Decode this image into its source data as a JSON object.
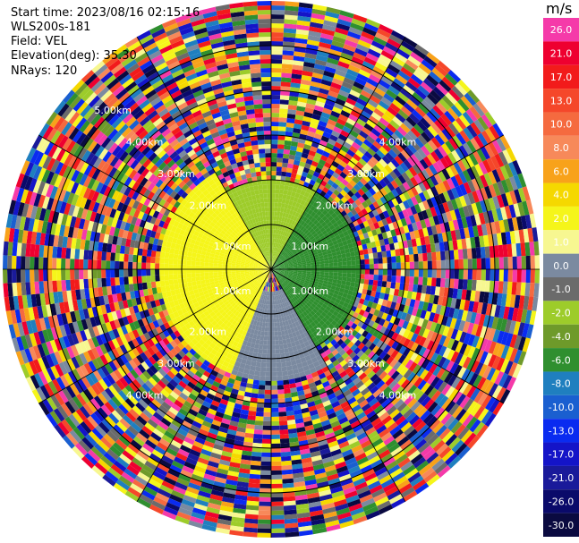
{
  "header": {
    "start_time": "Start time: 2023/08/16 02:15:16",
    "instrument": "WLS200s-181",
    "field": "Field: VEL",
    "elevation": "Elevation(deg): 35.30",
    "nrays": "NRays: 120"
  },
  "colorbar": {
    "unit": "m/s",
    "levels": [
      {
        "label": "26.0",
        "color": "#f53aa9"
      },
      {
        "label": "21.0",
        "color": "#ee0030"
      },
      {
        "label": "17.0",
        "color": "#f21b1b"
      },
      {
        "label": "13.0",
        "color": "#f5472a"
      },
      {
        "label": "10.0",
        "color": "#f56a3f"
      },
      {
        "label": "8.0",
        "color": "#f7895a"
      },
      {
        "label": "6.0",
        "color": "#f8a21a"
      },
      {
        "label": "4.0",
        "color": "#f5d800"
      },
      {
        "label": "2.0",
        "color": "#f5f51a"
      },
      {
        "label": "1.0",
        "color": "#f7f791"
      },
      {
        "label": "0.0",
        "color": "#7b8aa0"
      },
      {
        "label": "-1.0",
        "color": "#6b6b6b"
      },
      {
        "label": "-2.0",
        "color": "#9dcc2a"
      },
      {
        "label": "-4.0",
        "color": "#6e9a2a"
      },
      {
        "label": "-6.0",
        "color": "#2f8f2f"
      },
      {
        "label": "-8.0",
        "color": "#1f7fbf"
      },
      {
        "label": "-10.0",
        "color": "#1a5fd0"
      },
      {
        "label": "-13.0",
        "color": "#0a2bf0"
      },
      {
        "label": "-17.0",
        "color": "#1414c8"
      },
      {
        "label": "-21.0",
        "color": "#1a1a9a"
      },
      {
        "label": "-26.0",
        "color": "#0a0a6a"
      },
      {
        "label": "-30.0",
        "color": "#0a0a40"
      }
    ]
  },
  "chart_data": {
    "type": "heatmap",
    "projection": "polar",
    "field": "VEL",
    "units": "m/s",
    "elevation_deg": 35.3,
    "nrays": 120,
    "max_range_km": 6,
    "range_rings_km": [
      1,
      2,
      3,
      4,
      5
    ],
    "ring_labels": [
      {
        "text": "1.00km",
        "range_km": 1,
        "azimuth_deg": 60
      },
      {
        "text": "1.00km",
        "range_km": 1,
        "azimuth_deg": 120
      },
      {
        "text": "1.00km",
        "range_km": 1,
        "azimuth_deg": 240
      },
      {
        "text": "1.00km",
        "range_km": 1,
        "azimuth_deg": 300
      },
      {
        "text": "2.00km",
        "range_km": 2,
        "azimuth_deg": 45
      },
      {
        "text": "2.00km",
        "range_km": 2,
        "azimuth_deg": 135
      },
      {
        "text": "2.00km",
        "range_km": 2,
        "azimuth_deg": 225
      },
      {
        "text": "2.00km",
        "range_km": 2,
        "azimuth_deg": 315
      },
      {
        "text": "3.00km",
        "range_km": 3,
        "azimuth_deg": 45
      },
      {
        "text": "3.00km",
        "range_km": 3,
        "azimuth_deg": 135
      },
      {
        "text": "3.00km",
        "range_km": 3,
        "azimuth_deg": 225
      },
      {
        "text": "3.00km",
        "range_km": 3,
        "azimuth_deg": 315
      },
      {
        "text": "4.00km",
        "range_km": 4,
        "azimuth_deg": 45
      },
      {
        "text": "4.00km",
        "range_km": 4,
        "azimuth_deg": 135
      },
      {
        "text": "4.00km",
        "range_km": 4,
        "azimuth_deg": 225
      },
      {
        "text": "4.00km",
        "range_km": 4,
        "azimuth_deg": 315
      },
      {
        "text": "5.00km",
        "range_km": 5,
        "azimuth_deg": 315
      }
    ],
    "regions": [
      {
        "range_km": [
          0,
          2.5
        ],
        "azimuth_deg": [
          200,
          330
        ],
        "value_ms": 2.0
      },
      {
        "range_km": [
          0,
          1.2
        ],
        "azimuth_deg": [
          230,
          300
        ],
        "value_ms": 6.0
      },
      {
        "range_km": [
          0,
          2.0
        ],
        "azimuth_deg": [
          330,
          30
        ],
        "value_ms": -2.0
      },
      {
        "range_km": [
          0,
          2.0
        ],
        "azimuth_deg": [
          30,
          150
        ],
        "value_ms": -6.0
      },
      {
        "range_km": [
          0.5,
          2.5
        ],
        "azimuth_deg": [
          150,
          200
        ],
        "value_ms": 0.0
      }
    ]
  }
}
